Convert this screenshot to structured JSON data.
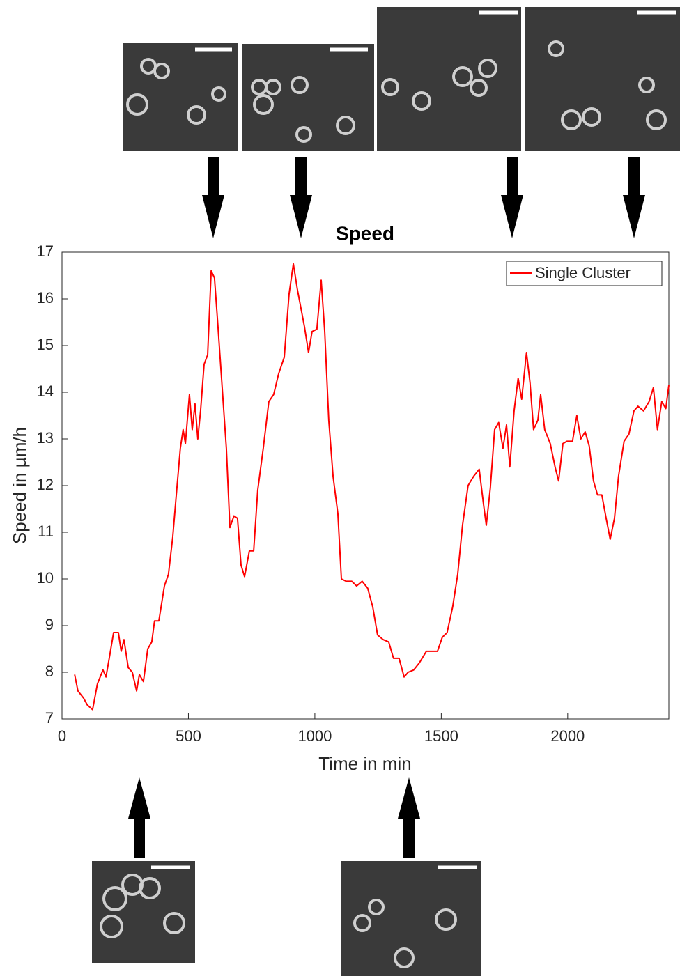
{
  "chart_data": {
    "type": "line",
    "title": "Speed",
    "x_label": "Time in min",
    "y_label": "Speed in µm/h",
    "xlim": [
      0,
      2400
    ],
    "ylim": [
      7,
      17
    ],
    "xticks": [
      0,
      500,
      1000,
      1500,
      2000
    ],
    "yticks": [
      7,
      8,
      9,
      10,
      11,
      12,
      13,
      14,
      15,
      16,
      17
    ],
    "legend": "upper right",
    "x": [
      50,
      63,
      85,
      100,
      121,
      140,
      162,
      174,
      190,
      204,
      223,
      234,
      245,
      262,
      278,
      295,
      306,
      322,
      339,
      355,
      366,
      383,
      405,
      421,
      438,
      452,
      468,
      479,
      488,
      504,
      515,
      526,
      537,
      548,
      562,
      576,
      590,
      603,
      617,
      636,
      650,
      664,
      680,
      694,
      708,
      722,
      741,
      758,
      774,
      796,
      818,
      837,
      857,
      879,
      898,
      915,
      931,
      945,
      959,
      975,
      989,
      1008,
      1025,
      1039,
      1055,
      1072,
      1091,
      1105,
      1124,
      1146,
      1165,
      1187,
      1209,
      1229,
      1248,
      1270,
      1292,
      1311,
      1333,
      1353,
      1369,
      1391,
      1413,
      1441,
      1463,
      1485,
      1504,
      1523,
      1545,
      1565,
      1584,
      1606,
      1628,
      1650,
      1667,
      1678,
      1694,
      1711,
      1727,
      1744,
      1758,
      1771,
      1788,
      1804,
      1818,
      1837,
      1851,
      1865,
      1882,
      1893,
      1909,
      1931,
      1950,
      1964,
      1981,
      1997,
      2019,
      2036,
      2052,
      2069,
      2085,
      2102,
      2118,
      2135,
      2152,
      2168,
      2185,
      2201,
      2223,
      2242,
      2262,
      2278,
      2300,
      2322,
      2339,
      2355,
      2372,
      2388,
      2400
    ],
    "series": [
      {
        "name": "Single Cluster",
        "color": "#ff0000",
        "values": [
          7.95,
          7.6,
          7.45,
          7.3,
          7.2,
          7.75,
          8.05,
          7.9,
          8.4,
          8.85,
          8.85,
          8.45,
          8.7,
          8.1,
          8.0,
          7.6,
          7.95,
          7.8,
          8.5,
          8.65,
          9.1,
          9.1,
          9.85,
          10.1,
          10.9,
          11.8,
          12.8,
          13.2,
          12.9,
          13.95,
          13.2,
          13.75,
          13.0,
          13.6,
          14.6,
          14.8,
          16.6,
          16.45,
          15.4,
          13.9,
          12.8,
          11.1,
          11.35,
          11.3,
          10.3,
          10.05,
          10.6,
          10.6,
          11.9,
          12.8,
          13.8,
          13.95,
          14.4,
          14.75,
          16.1,
          16.75,
          16.2,
          15.8,
          15.4,
          14.85,
          15.3,
          15.35,
          16.4,
          15.3,
          13.4,
          12.2,
          11.4,
          10.0,
          9.95,
          9.95,
          9.85,
          9.95,
          9.8,
          9.4,
          8.8,
          8.7,
          8.65,
          8.3,
          8.3,
          7.9,
          8.0,
          8.05,
          8.2,
          8.45,
          8.45,
          8.45,
          8.75,
          8.85,
          9.4,
          10.1,
          11.15,
          12.0,
          12.2,
          12.35,
          11.6,
          11.15,
          11.95,
          13.2,
          13.35,
          12.8,
          13.3,
          12.4,
          13.6,
          14.3,
          13.85,
          14.85,
          14.2,
          13.2,
          13.4,
          13.95,
          13.2,
          12.9,
          12.4,
          12.1,
          12.9,
          12.95,
          12.95,
          13.5,
          13.0,
          13.15,
          12.85,
          12.1,
          11.8,
          11.8,
          11.3,
          10.85,
          11.3,
          12.2,
          12.95,
          13.1,
          13.6,
          13.7,
          13.6,
          13.8,
          14.1,
          13.2,
          13.8,
          13.65,
          14.15
        ]
      }
    ]
  }
}
